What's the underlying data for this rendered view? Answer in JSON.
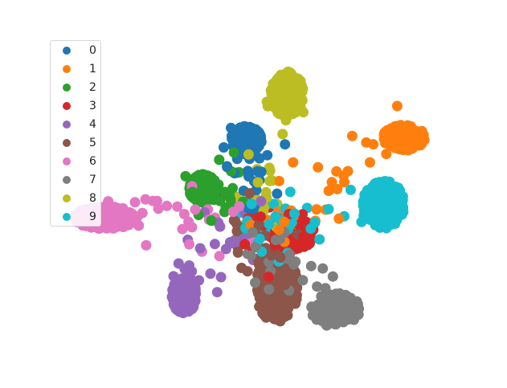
{
  "chart_data": {
    "type": "scatter",
    "title": "",
    "xlabel": "",
    "ylabel": "",
    "axes_visible": false,
    "grid": false,
    "legend_position": "top-left",
    "series": [
      {
        "name": "0",
        "color": "#1f77b4",
        "center": [
          -2.6,
          5.2
        ],
        "spread": [
          1.1,
          0.9
        ]
      },
      {
        "name": "1",
        "color": "#ff7f0e",
        "center": [
          9.8,
          5.4
        ],
        "spread": [
          1.5,
          0.8
        ]
      },
      {
        "name": "2",
        "color": "#2ca02c",
        "center": [
          -6.0,
          1.9
        ],
        "spread": [
          1.0,
          0.9
        ]
      },
      {
        "name": "3",
        "color": "#d62728",
        "center": [
          1.0,
          -1.2
        ],
        "spread": [
          1.6,
          1.0
        ]
      },
      {
        "name": "4",
        "color": "#9467bd",
        "center": [
          -7.5,
          -5.4
        ],
        "spread": [
          0.9,
          1.2
        ]
      },
      {
        "name": "5",
        "color": "#8c564b",
        "center": [
          -0.2,
          -4.9
        ],
        "spread": [
          1.5,
          2.3
        ]
      },
      {
        "name": "6",
        "color": "#e377c2",
        "center": [
          -13.7,
          -0.1
        ],
        "spread": [
          2.3,
          0.7
        ]
      },
      {
        "name": "7",
        "color": "#7f7f7f",
        "center": [
          4.4,
          -6.4
        ],
        "spread": [
          1.8,
          1.0
        ]
      },
      {
        "name": "8",
        "color": "#bcbd22",
        "center": [
          0.6,
          8.4
        ],
        "spread": [
          1.2,
          1.4
        ]
      },
      {
        "name": "9",
        "color": "#17becf",
        "center": [
          8.2,
          0.8
        ],
        "spread": [
          1.5,
          1.5
        ]
      }
    ],
    "xlim": [
      -17,
      14
    ],
    "ylim": [
      -10,
      12
    ]
  }
}
